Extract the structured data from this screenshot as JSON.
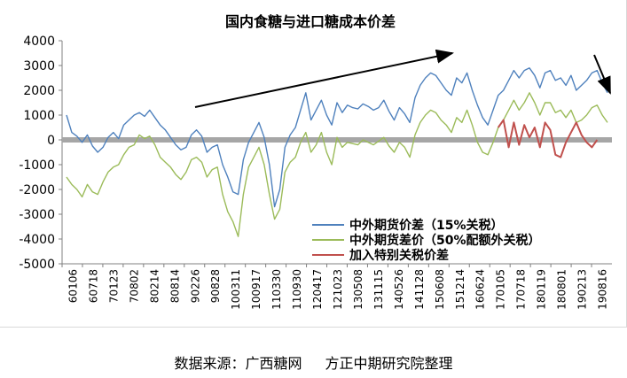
{
  "chart_data": {
    "type": "line",
    "title": "国内食糖与进口糖成本价差",
    "xlabel": "",
    "ylabel": "",
    "ylim": [
      -5000,
      4000
    ],
    "yticks": [
      4000,
      3000,
      2000,
      1000,
      0,
      -1000,
      -2000,
      -3000,
      -4000,
      -5000
    ],
    "x_tick_labels": [
      "60106",
      "60718",
      "70123",
      "70802",
      "80214",
      "80814",
      "90226",
      "90828",
      "100311",
      "100917",
      "110330",
      "110930",
      "120417",
      "121023",
      "130508",
      "131115",
      "140526",
      "141128",
      "150608",
      "151214",
      "160624",
      "170105",
      "170718",
      "180119",
      "180801",
      "190213",
      "190816"
    ],
    "grid": false,
    "legend_position": "bottom-center",
    "zero_line_color": "#a6a6a6",
    "series": [
      {
        "name": "中外期货价差（15%关税）",
        "color": "#4f81bd",
        "start_index": 0,
        "values": [
          1000,
          300,
          150,
          -100,
          200,
          -250,
          -500,
          -300,
          100,
          300,
          50,
          600,
          800,
          1000,
          1100,
          950,
          1200,
          900,
          600,
          400,
          100,
          -200,
          -400,
          -300,
          200,
          400,
          150,
          -500,
          -300,
          -200,
          -1000,
          -1500,
          -2100,
          -2200,
          -800,
          -100,
          300,
          700,
          100,
          -1000,
          -2700,
          -2000,
          -300,
          200,
          500,
          1200,
          1900,
          800,
          1200,
          1600,
          1000,
          600,
          1500,
          1100,
          1400,
          1300,
          1250,
          1450,
          1350,
          1200,
          1300,
          1600,
          1150,
          800,
          1300,
          1050,
          700,
          1700,
          2200,
          2500,
          2700,
          2600,
          2300,
          2000,
          1800,
          2500,
          2300,
          2700,
          2000,
          1400,
          900,
          600,
          1200,
          1800,
          2000,
          2400,
          2800,
          2500,
          2800,
          2900,
          2600,
          2100,
          2700,
          2800,
          2400,
          2500,
          2200,
          2600,
          2000,
          2200,
          2400,
          2700,
          2800,
          2300,
          1900
        ]
      },
      {
        "name": "中外期货差价（50%配额外关税）",
        "color": "#9bbb59",
        "start_index": 0,
        "values": [
          -1500,
          -1800,
          -2000,
          -2300,
          -1800,
          -2100,
          -2200,
          -1700,
          -1300,
          -1100,
          -1000,
          -600,
          -300,
          -200,
          200,
          50,
          150,
          -200,
          -700,
          -900,
          -1100,
          -1400,
          -1600,
          -1300,
          -800,
          -700,
          -900,
          -1500,
          -1200,
          -1100,
          -2200,
          -2900,
          -3300,
          -3900,
          -2200,
          -1100,
          -700,
          -300,
          -1000,
          -2200,
          -3200,
          -2800,
          -1300,
          -900,
          -700,
          -100,
          300,
          -500,
          -200,
          300,
          -500,
          -1000,
          100,
          -300,
          -100,
          -150,
          -200,
          0,
          -100,
          -200,
          -50,
          100,
          -250,
          -500,
          -100,
          -300,
          -700,
          200,
          700,
          1000,
          1200,
          1100,
          800,
          600,
          300,
          900,
          700,
          1200,
          600,
          -100,
          -500,
          -600,
          -100,
          500,
          800,
          1200,
          1600,
          1200,
          1500,
          1900,
          1500,
          1000,
          1500,
          1500,
          1100,
          1200,
          900,
          1200,
          700,
          800,
          1000,
          1300,
          1400,
          1000,
          700
        ]
      },
      {
        "name": "加入特别关税价差",
        "color": "#c0504d",
        "start_index": 83,
        "values": [
          500,
          800,
          -300,
          700,
          -200,
          600,
          100,
          500,
          -300,
          700,
          400,
          -600,
          -700,
          -100,
          300,
          700,
          200,
          -100,
          -300,
          0
        ]
      }
    ]
  },
  "source_label": "数据来源：广西糖网",
  "source_org": "方正中期研究院整理"
}
